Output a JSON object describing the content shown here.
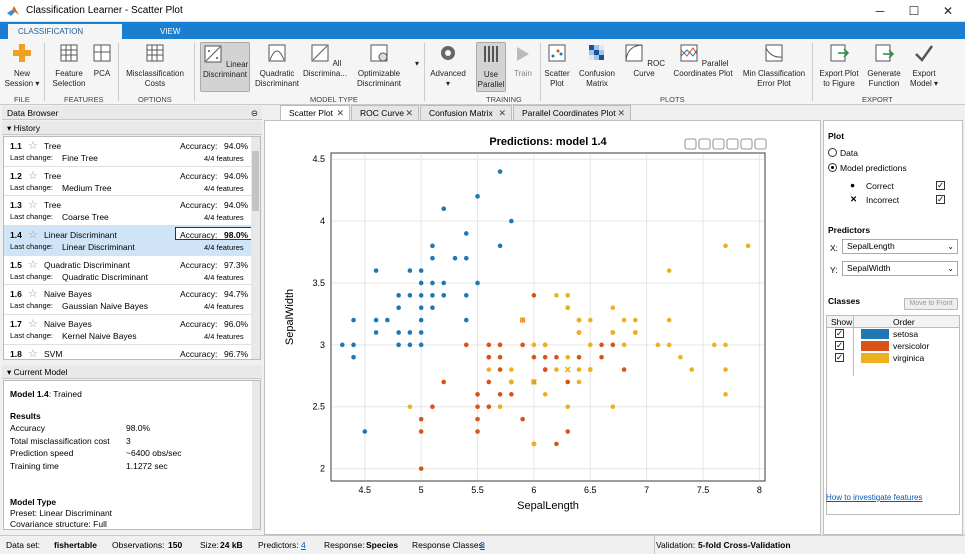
{
  "window": {
    "title": "Classification Learner - Scatter Plot"
  },
  "tabs": {
    "classification_learner": "CLASSIFICATION LEARNER",
    "view": "VIEW"
  },
  "ribbon": {
    "new_session": "New\nSession ▾",
    "feature_selection": "Feature\nSelection",
    "pca": "PCA",
    "misclassification_costs": "Misclassification\nCosts",
    "linear_discriminant": "Linear\nDiscriminant",
    "quadratic_discriminant": "Quadratic\nDiscriminant",
    "all_discriminants": "All\nDiscrimina...",
    "optimizable_discriminant": "Optimizable\nDiscriminant",
    "advanced": "Advanced\n▾",
    "use_parallel": "Use\nParallel",
    "train": "Train",
    "scatter_plot": "Scatter\nPlot",
    "confusion_matrix": "Confusion\nMatrix",
    "roc_curve": "ROC Curve",
    "parallel_coordinates_plot": "Parallel\nCoordinates Plot",
    "min_classification_error_plot": "Min Classification\nError Plot",
    "export_plot": "Export Plot\nto Figure",
    "generate_function": "Generate\nFunction",
    "export_model": "Export\nModel ▾",
    "groups": {
      "file": "FILE",
      "features": "FEATURES",
      "options": "OPTIONS",
      "model_type": "MODEL TYPE",
      "training": "TRAINING",
      "plots": "PLOTS",
      "export": "EXPORT"
    }
  },
  "data_browser": {
    "title": "Data Browser"
  },
  "history": {
    "title": "History",
    "accuracy_label": "Accuracy:",
    "last_change_label": "Last change:",
    "items": [
      {
        "num": "1.1",
        "name": "Tree",
        "accuracy": "94.0%",
        "last_change": "Fine Tree",
        "features": "4/4 features"
      },
      {
        "num": "1.2",
        "name": "Tree",
        "accuracy": "94.0%",
        "last_change": "Medium Tree",
        "features": "4/4 features"
      },
      {
        "num": "1.3",
        "name": "Tree",
        "accuracy": "94.0%",
        "last_change": "Coarse Tree",
        "features": "4/4 features"
      },
      {
        "num": "1.4",
        "name": "Linear Discriminant",
        "accuracy": "98.0%",
        "last_change": "Linear Discriminant",
        "features": "4/4 features"
      },
      {
        "num": "1.5",
        "name": "Quadratic Discriminant",
        "accuracy": "97.3%",
        "last_change": "Quadratic Discriminant",
        "features": "4/4 features"
      },
      {
        "num": "1.6",
        "name": "Naive Bayes",
        "accuracy": "94.7%",
        "last_change": "Gaussian Naive Bayes",
        "features": "4/4 features"
      },
      {
        "num": "1.7",
        "name": "Naive Bayes",
        "accuracy": "96.0%",
        "last_change": "Kernel Naive Bayes",
        "features": "4/4 features"
      },
      {
        "num": "1.8",
        "name": "SVM",
        "accuracy": "96.7%",
        "last_change": "",
        "features": ""
      }
    ]
  },
  "current_model": {
    "title": "Current Model",
    "model_name": "Model 1.4",
    "status": ": Trained",
    "results_heading": "Results",
    "rows": [
      {
        "label": "Accuracy",
        "value": "98.0%"
      },
      {
        "label": "Total misclassification cost",
        "value": "3"
      },
      {
        "label": "Prediction speed",
        "value": "~6400 obs/sec"
      },
      {
        "label": "Training time",
        "value": "1.1272 sec"
      }
    ],
    "model_type_heading": "Model Type",
    "preset": "Preset: Linear Discriminant",
    "covariance": "Covariance structure: Full"
  },
  "plot_tabs": [
    "Scatter Plot",
    "ROC Curve",
    "Confusion Matrix",
    "Parallel Coordinates Plot"
  ],
  "chart_data": {
    "type": "scatter",
    "title": "Predictions: model 1.4",
    "xlabel": "SepalLength",
    "ylabel": "SepalWidth",
    "xlim": [
      4.2,
      8.05
    ],
    "ylim": [
      1.9,
      4.55
    ],
    "xticks": [
      4.5,
      5,
      5.5,
      6,
      6.5,
      7,
      7.5,
      8
    ],
    "yticks": [
      2,
      2.5,
      3,
      3.5,
      4,
      4.5
    ],
    "grid": true,
    "series": [
      {
        "name": "setosa",
        "color": "#1f77b4",
        "points": [
          [
            5.7,
            4.4
          ],
          [
            5.5,
            4.2
          ],
          [
            5.2,
            4.1
          ],
          [
            5.8,
            4.0
          ],
          [
            5.4,
            3.9
          ],
          [
            5.7,
            3.8
          ],
          [
            5.1,
            3.8
          ],
          [
            5.4,
            3.7
          ],
          [
            5.3,
            3.7
          ],
          [
            5.1,
            3.7
          ],
          [
            5.0,
            3.6
          ],
          [
            4.6,
            3.6
          ],
          [
            4.9,
            3.6
          ],
          [
            5.1,
            3.5
          ],
          [
            5.2,
            3.5
          ],
          [
            5.5,
            3.5
          ],
          [
            5.0,
            3.5
          ],
          [
            4.8,
            3.4
          ],
          [
            4.9,
            3.4
          ],
          [
            5.0,
            3.4
          ],
          [
            5.1,
            3.4
          ],
          [
            5.2,
            3.4
          ],
          [
            5.4,
            3.4
          ],
          [
            4.8,
            3.3
          ],
          [
            5.0,
            3.3
          ],
          [
            5.1,
            3.3
          ],
          [
            4.4,
            3.2
          ],
          [
            4.6,
            3.2
          ],
          [
            4.7,
            3.2
          ],
          [
            5.0,
            3.2
          ],
          [
            5.4,
            3.2
          ],
          [
            4.6,
            3.1
          ],
          [
            4.8,
            3.1
          ],
          [
            4.9,
            3.1
          ],
          [
            5.0,
            3.1
          ],
          [
            4.3,
            3.0
          ],
          [
            4.4,
            3.0
          ],
          [
            4.8,
            3.0
          ],
          [
            4.9,
            3.0
          ],
          [
            5.0,
            3.0
          ],
          [
            4.4,
            2.9
          ],
          [
            4.5,
            2.3
          ]
        ]
      },
      {
        "name": "versicolor",
        "color": "#d95319",
        "points": [
          [
            6.0,
            3.4
          ],
          [
            5.9,
            3.2
          ],
          [
            6.4,
            3.2
          ],
          [
            6.7,
            3.1
          ],
          [
            6.9,
            3.1
          ],
          [
            6.8,
            2.8
          ],
          [
            5.6,
            3.0
          ],
          [
            5.7,
            3.0
          ],
          [
            5.9,
            3.0
          ],
          [
            6.1,
            3.0
          ],
          [
            6.6,
            3.0
          ],
          [
            6.7,
            3.0
          ],
          [
            5.4,
            3.0
          ],
          [
            5.6,
            2.9
          ],
          [
            6.0,
            2.9
          ],
          [
            6.1,
            2.9
          ],
          [
            6.2,
            2.9
          ],
          [
            6.4,
            2.9
          ],
          [
            6.6,
            2.9
          ],
          [
            5.7,
            2.9
          ],
          [
            5.7,
            2.8
          ],
          [
            6.1,
            2.8
          ],
          [
            6.5,
            2.8
          ],
          [
            5.8,
            2.7
          ],
          [
            5.8,
            2.7
          ],
          [
            6.0,
            2.7
          ],
          [
            5.6,
            2.7
          ],
          [
            5.2,
            2.7
          ],
          [
            6.3,
            2.7
          ],
          [
            5.5,
            2.6
          ],
          [
            5.7,
            2.6
          ],
          [
            5.8,
            2.6
          ],
          [
            5.5,
            2.5
          ],
          [
            5.6,
            2.5
          ],
          [
            5.1,
            2.5
          ],
          [
            5.0,
            2.4
          ],
          [
            5.5,
            2.4
          ],
          [
            5.9,
            2.4
          ],
          [
            5.0,
            2.3
          ],
          [
            5.5,
            2.3
          ],
          [
            6.3,
            2.3
          ],
          [
            6.2,
            2.2
          ],
          [
            6.0,
            2.2
          ],
          [
            5.9,
            3.2
          ],
          [
            5.6,
            2.9
          ],
          [
            5.0,
            2.0
          ],
          [
            6.0,
            2.2
          ],
          [
            6.1,
            2.8
          ],
          [
            6.4,
            3.1
          ],
          [
            6.3,
            3.3
          ]
        ]
      },
      {
        "name": "virginica",
        "color": "#edb120",
        "points": [
          [
            7.7,
            3.8
          ],
          [
            7.9,
            3.8
          ],
          [
            7.2,
            3.6
          ],
          [
            6.3,
            3.4
          ],
          [
            6.2,
            3.4
          ],
          [
            7.2,
            3.2
          ],
          [
            6.9,
            3.2
          ],
          [
            6.4,
            3.2
          ],
          [
            6.5,
            3.2
          ],
          [
            6.7,
            3.3
          ],
          [
            6.3,
            3.3
          ],
          [
            6.8,
            3.2
          ],
          [
            7.1,
            3.0
          ],
          [
            7.7,
            3.0
          ],
          [
            7.6,
            3.0
          ],
          [
            6.5,
            3.0
          ],
          [
            6.9,
            3.1
          ],
          [
            6.7,
            3.1
          ],
          [
            6.4,
            3.1
          ],
          [
            7.2,
            3.0
          ],
          [
            6.8,
            3.0
          ],
          [
            7.3,
            2.9
          ],
          [
            6.3,
            2.9
          ],
          [
            6.4,
            2.8
          ],
          [
            6.2,
            2.8
          ],
          [
            7.4,
            2.8
          ],
          [
            7.7,
            2.8
          ],
          [
            6.5,
            2.8
          ],
          [
            5.8,
            2.8
          ],
          [
            6.7,
            2.5
          ],
          [
            6.3,
            2.5
          ],
          [
            6.0,
            3.0
          ],
          [
            5.8,
            2.7
          ],
          [
            6.1,
            3.0
          ],
          [
            6.4,
            2.7
          ],
          [
            7.7,
            2.6
          ],
          [
            6.1,
            2.6
          ],
          [
            5.6,
            2.8
          ],
          [
            4.9,
            2.5
          ],
          [
            5.7,
            2.5
          ],
          [
            6.0,
            2.2
          ]
        ]
      }
    ],
    "incorrect": [
      [
        5.9,
        3.2
      ],
      [
        6.3,
        2.8
      ],
      [
        6.0,
        2.7
      ]
    ]
  },
  "plot_panel": {
    "heading": "Plot",
    "data_option": "Data",
    "model_predictions_option": "Model predictions",
    "correct_label": "Correct",
    "incorrect_label": "Incorrect",
    "predictors_heading": "Predictors",
    "x_label": "X:",
    "x_value": "SepalLength",
    "y_label": "Y:",
    "y_value": "SepalWidth",
    "classes_heading": "Classes",
    "move_to_front": "Move to Front",
    "show_col": "Show",
    "order_col": "Order",
    "classes": [
      {
        "name": "setosa",
        "color": "#1f77b4"
      },
      {
        "name": "versicolor",
        "color": "#d95319"
      },
      {
        "name": "virginica",
        "color": "#edb120"
      }
    ],
    "help_link": "How to investigate features"
  },
  "status": {
    "dataset_label": "Data set:",
    "dataset": "fishertable",
    "observations_label": "Observations:",
    "observations": "150",
    "size_label": "Size:",
    "size": "24 kB",
    "predictors_label": "Predictors:",
    "predictors": "4",
    "response_label": "Response:",
    "response": "Species",
    "response_classes_label": "Response Classes:",
    "response_classes": "3",
    "validation_label": "Validation:",
    "validation": "5-fold Cross-Validation"
  }
}
